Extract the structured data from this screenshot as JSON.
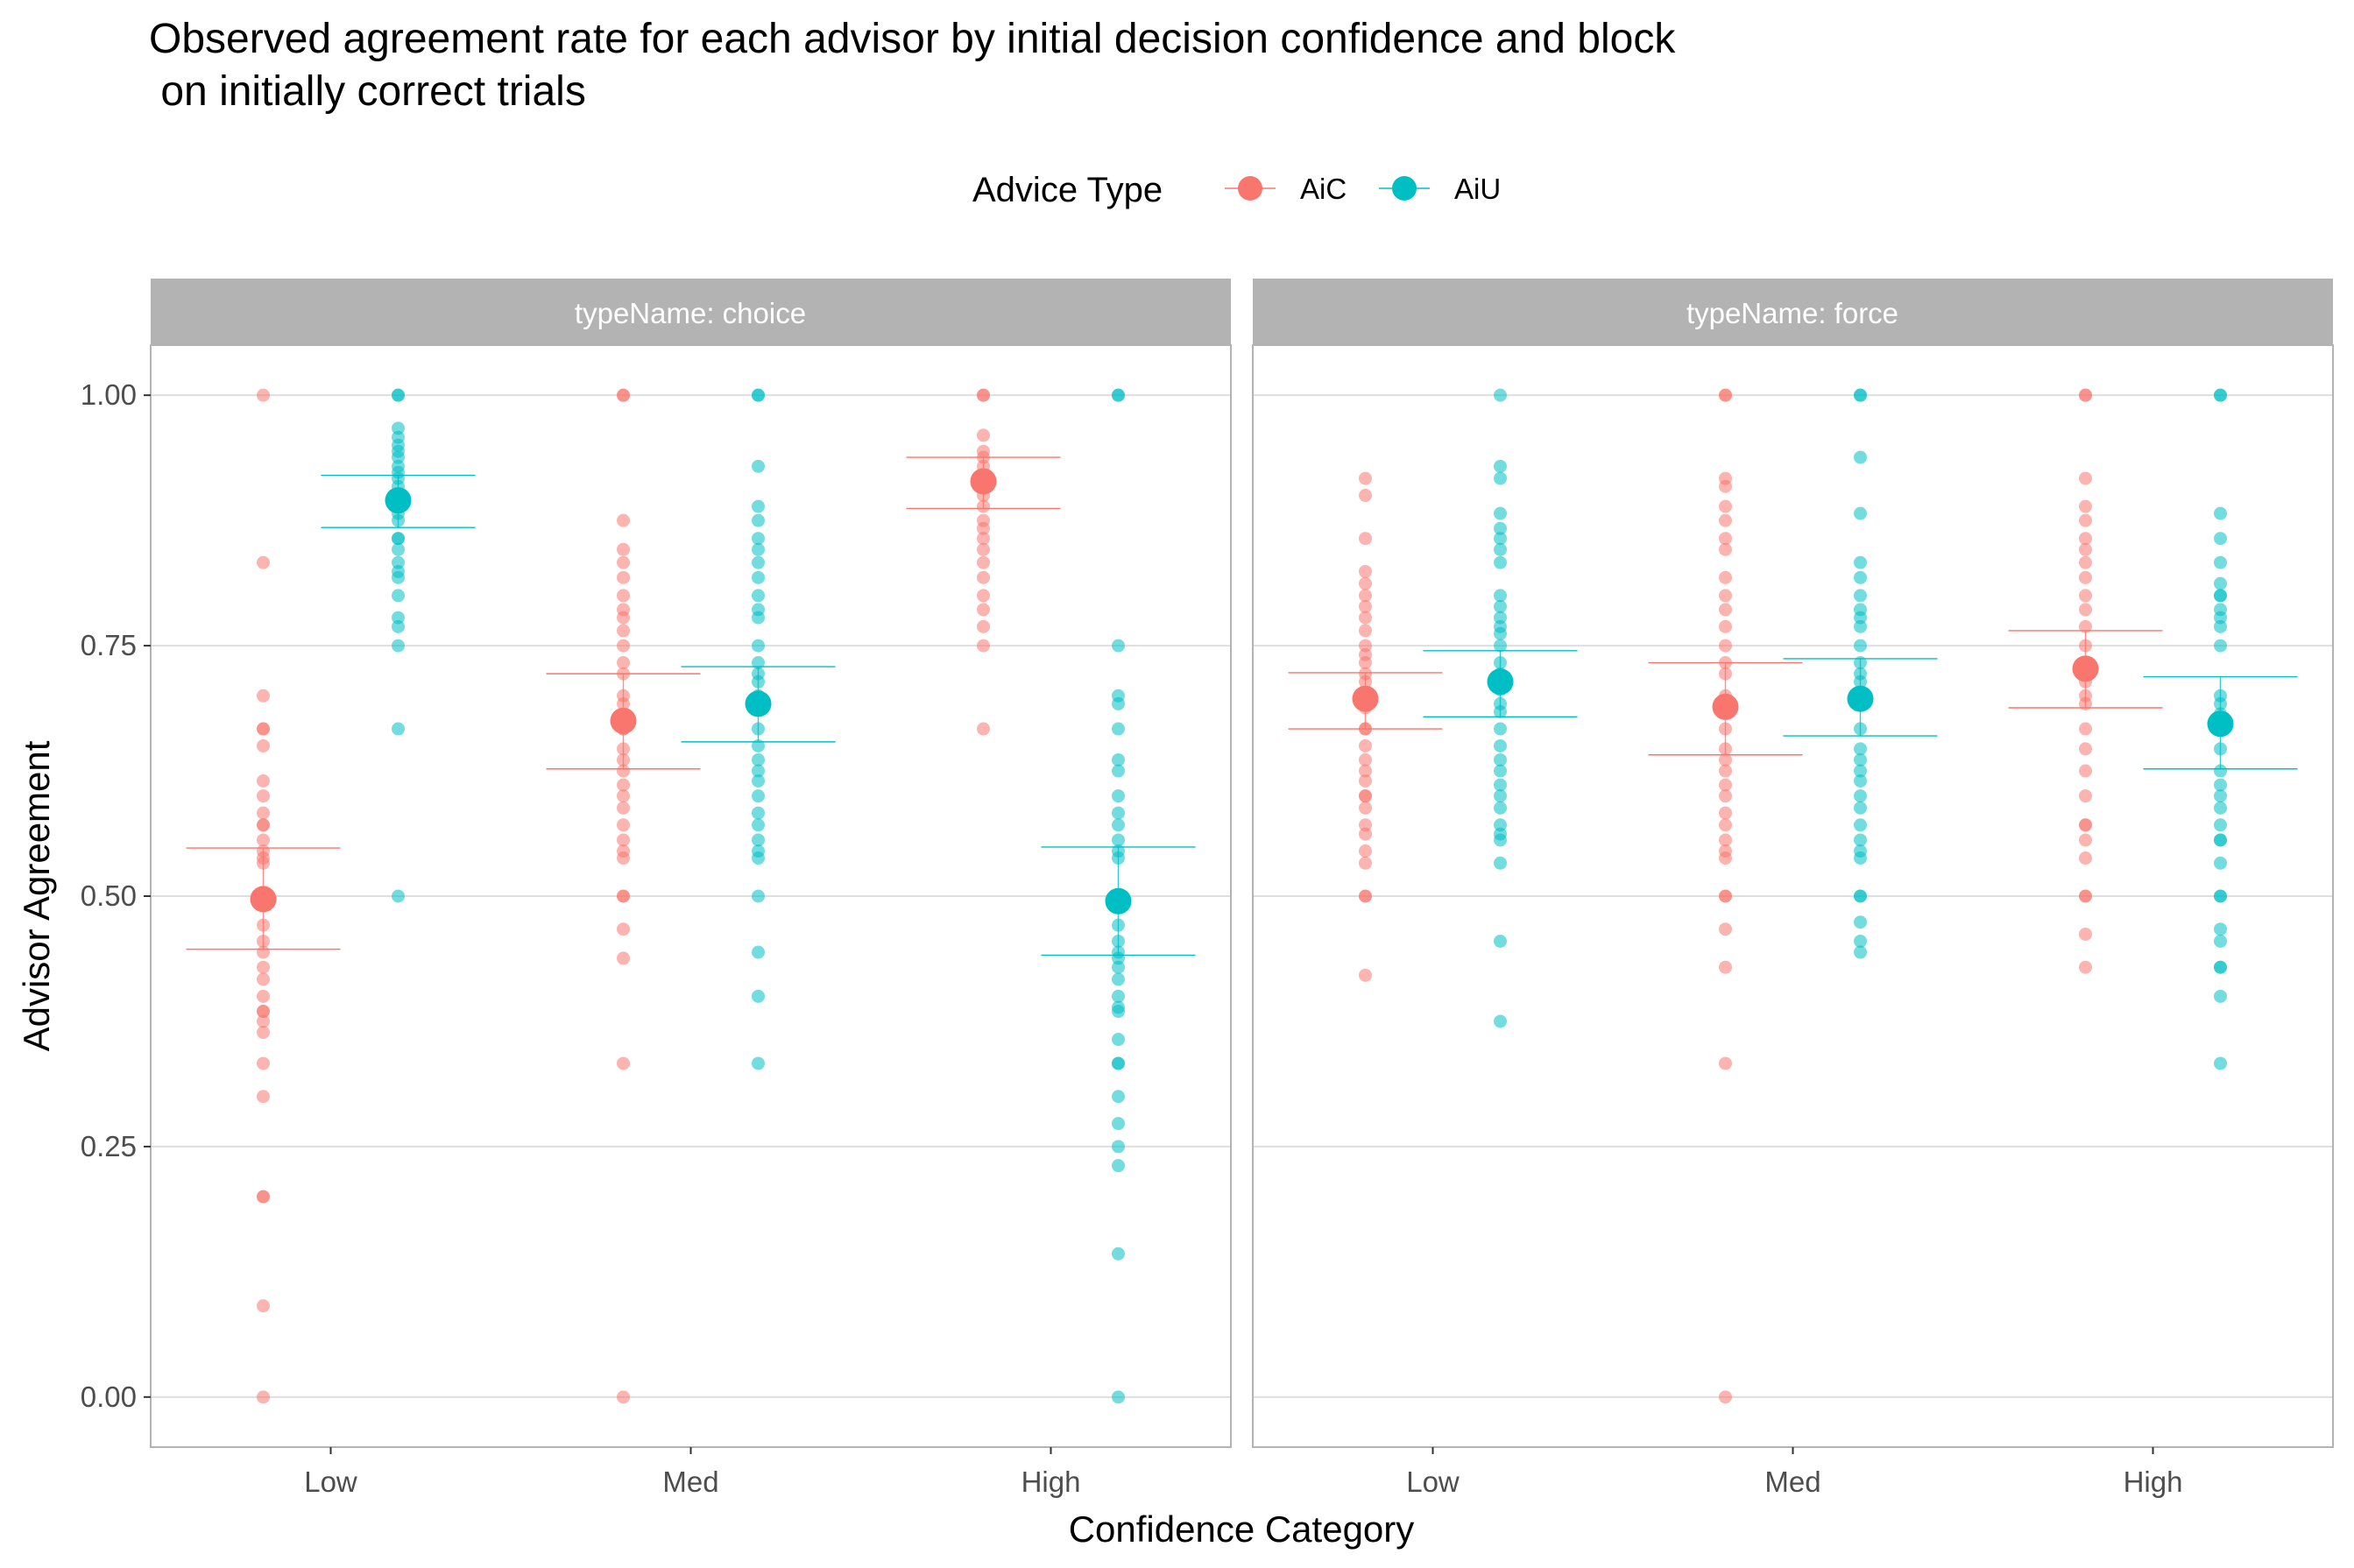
{
  "chart_data": {
    "type": "scatter",
    "title_line1": "Observed agreement rate for each advisor by initial decision confidence and block",
    "title_line2": " on initially correct trials",
    "xlabel": "Confidence Category",
    "ylabel": "Advisor Agreement",
    "legend": {
      "title": "Advice Type",
      "position": "top"
    },
    "series": [
      {
        "name": "AiC",
        "color": "#F8766D"
      },
      {
        "name": "AiU",
        "color": "#00BFC4"
      }
    ],
    "categories": [
      "Low",
      "Med",
      "High"
    ],
    "ylim": [
      -0.05,
      1.05
    ],
    "yticks": [
      {
        "value": 0.0,
        "label": "0.00"
      },
      {
        "value": 0.25,
        "label": "0.25"
      },
      {
        "value": 0.5,
        "label": "0.50"
      },
      {
        "value": 0.75,
        "label": "0.75"
      },
      {
        "value": 1.0,
        "label": "1.00"
      }
    ],
    "grid": true,
    "panels": [
      {
        "strip": "typeName: choice",
        "groups": [
          {
            "category": "Low",
            "series": "AiC",
            "mean": 0.497,
            "ci": [
              0.447,
              0.548
            ],
            "points": [
              1.0,
              0.833,
              0.7,
              0.667,
              0.667,
              0.65,
              0.615,
              0.6,
              0.583,
              0.571,
              0.571,
              0.556,
              0.545,
              0.538,
              0.533,
              0.5,
              0.5,
              0.5,
              0.471,
              0.455,
              0.444,
              0.429,
              0.417,
              0.4,
              0.385,
              0.385,
              0.375,
              0.364,
              0.333,
              0.3,
              0.2,
              0.2,
              0.091,
              0.0
            ]
          },
          {
            "category": "Low",
            "series": "AiU",
            "mean": 0.895,
            "ci": [
              0.868,
              0.92
            ],
            "points": [
              1.0,
              1.0,
              0.967,
              0.958,
              0.95,
              0.944,
              0.938,
              0.929,
              0.923,
              0.917,
              0.909,
              0.9,
              0.9,
              0.889,
              0.882,
              0.875,
              0.857,
              0.857,
              0.846,
              0.833,
              0.824,
              0.818,
              0.8,
              0.778,
              0.769,
              0.75,
              0.667,
              0.5
            ]
          },
          {
            "category": "Med",
            "series": "AiC",
            "mean": 0.675,
            "ci": [
              0.627,
              0.722
            ],
            "points": [
              1.0,
              1.0,
              0.875,
              0.846,
              0.833,
              0.818,
              0.8,
              0.786,
              0.778,
              0.765,
              0.75,
              0.733,
              0.722,
              0.7,
              0.692,
              0.667,
              0.667,
              0.647,
              0.636,
              0.625,
              0.611,
              0.6,
              0.588,
              0.571,
              0.556,
              0.545,
              0.538,
              0.5,
              0.5,
              0.467,
              0.438,
              0.333,
              0.0
            ]
          },
          {
            "category": "Med",
            "series": "AiU",
            "mean": 0.692,
            "ci": [
              0.654,
              0.729
            ],
            "points": [
              1.0,
              1.0,
              0.929,
              0.889,
              0.875,
              0.857,
              0.846,
              0.833,
              0.818,
              0.8,
              0.786,
              0.778,
              0.75,
              0.733,
              0.722,
              0.714,
              0.7,
              0.692,
              0.667,
              0.65,
              0.636,
              0.625,
              0.615,
              0.6,
              0.583,
              0.571,
              0.556,
              0.545,
              0.538,
              0.5,
              0.444,
              0.4,
              0.333
            ]
          },
          {
            "category": "High",
            "series": "AiC",
            "mean": 0.914,
            "ci": [
              0.887,
              0.938
            ],
            "points": [
              1.0,
              1.0,
              0.96,
              0.944,
              0.938,
              0.929,
              0.917,
              0.909,
              0.9,
              0.889,
              0.875,
              0.867,
              0.857,
              0.846,
              0.833,
              0.818,
              0.8,
              0.786,
              0.769,
              0.75,
              0.667
            ]
          },
          {
            "category": "High",
            "series": "AiU",
            "mean": 0.495,
            "ci": [
              0.441,
              0.549
            ],
            "points": [
              1.0,
              1.0,
              0.75,
              0.7,
              0.692,
              0.667,
              0.636,
              0.625,
              0.6,
              0.583,
              0.571,
              0.556,
              0.545,
              0.538,
              0.5,
              0.5,
              0.471,
              0.455,
              0.444,
              0.438,
              0.429,
              0.417,
              0.4,
              0.389,
              0.385,
              0.357,
              0.333,
              0.333,
              0.3,
              0.273,
              0.25,
              0.231,
              0.143,
              0.0
            ]
          }
        ]
      },
      {
        "strip": "typeName: force",
        "groups": [
          {
            "category": "Low",
            "series": "AiC",
            "mean": 0.697,
            "ci": [
              0.667,
              0.723
            ],
            "points": [
              0.917,
              0.9,
              0.857,
              0.824,
              0.812,
              0.8,
              0.789,
              0.778,
              0.765,
              0.75,
              0.741,
              0.733,
              0.722,
              0.714,
              0.7,
              0.692,
              0.688,
              0.667,
              0.667,
              0.65,
              0.636,
              0.625,
              0.615,
              0.6,
              0.6,
              0.588,
              0.571,
              0.562,
              0.545,
              0.533,
              0.5,
              0.5,
              0.421
            ]
          },
          {
            "category": "Low",
            "series": "AiU",
            "mean": 0.714,
            "ci": [
              0.679,
              0.745
            ],
            "points": [
              1.0,
              0.929,
              0.917,
              0.882,
              0.867,
              0.857,
              0.846,
              0.833,
              0.8,
              0.789,
              0.778,
              0.769,
              0.762,
              0.75,
              0.733,
              0.722,
              0.714,
              0.706,
              0.692,
              0.684,
              0.667,
              0.65,
              0.636,
              0.625,
              0.611,
              0.6,
              0.588,
              0.571,
              0.562,
              0.556,
              0.533,
              0.455,
              0.375
            ]
          },
          {
            "category": "Med",
            "series": "AiC",
            "mean": 0.689,
            "ci": [
              0.641,
              0.733
            ],
            "points": [
              1.0,
              1.0,
              0.917,
              0.909,
              0.889,
              0.875,
              0.857,
              0.846,
              0.818,
              0.8,
              0.786,
              0.769,
              0.75,
              0.733,
              0.722,
              0.7,
              0.692,
              0.667,
              0.647,
              0.636,
              0.625,
              0.611,
              0.6,
              0.583,
              0.571,
              0.556,
              0.545,
              0.538,
              0.5,
              0.5,
              0.467,
              0.429,
              0.333,
              0.0
            ]
          },
          {
            "category": "Med",
            "series": "AiU",
            "mean": 0.697,
            "ci": [
              0.66,
              0.737
            ],
            "points": [
              1.0,
              1.0,
              0.938,
              0.882,
              0.833,
              0.818,
              0.8,
              0.786,
              0.778,
              0.769,
              0.75,
              0.733,
              0.722,
              0.714,
              0.7,
              0.692,
              0.667,
              0.647,
              0.636,
              0.625,
              0.615,
              0.6,
              0.588,
              0.571,
              0.556,
              0.545,
              0.538,
              0.5,
              0.5,
              0.474,
              0.455,
              0.444
            ]
          },
          {
            "category": "High",
            "series": "AiC",
            "mean": 0.727,
            "ci": [
              0.688,
              0.765
            ],
            "points": [
              1.0,
              1.0,
              0.917,
              0.889,
              0.875,
              0.857,
              0.846,
              0.833,
              0.818,
              0.8,
              0.786,
              0.769,
              0.75,
              0.733,
              0.714,
              0.7,
              0.692,
              0.667,
              0.647,
              0.625,
              0.6,
              0.571,
              0.571,
              0.556,
              0.538,
              0.5,
              0.5,
              0.462,
              0.429
            ]
          },
          {
            "category": "High",
            "series": "AiU",
            "mean": 0.672,
            "ci": [
              0.627,
              0.719
            ],
            "points": [
              1.0,
              1.0,
              0.882,
              0.857,
              0.833,
              0.812,
              0.8,
              0.8,
              0.786,
              0.778,
              0.769,
              0.75,
              0.7,
              0.692,
              0.682,
              0.667,
              0.647,
              0.625,
              0.611,
              0.6,
              0.588,
              0.571,
              0.556,
              0.556,
              0.533,
              0.5,
              0.5,
              0.467,
              0.455,
              0.429,
              0.429,
              0.4,
              0.333
            ]
          }
        ]
      }
    ]
  }
}
